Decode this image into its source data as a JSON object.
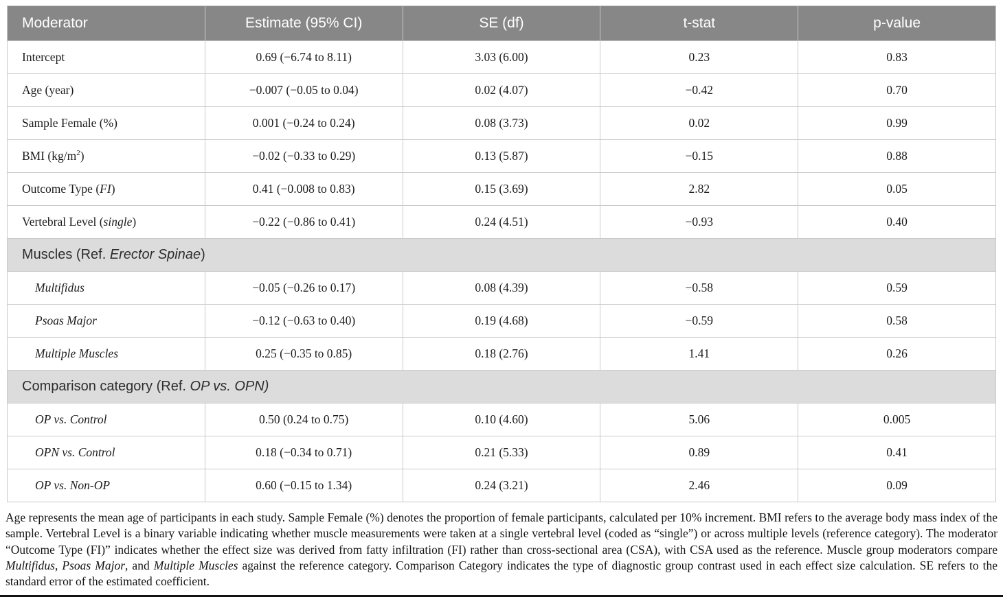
{
  "colors": {
    "header_bg": "#878787",
    "header_text": "#ffffff",
    "section_bg": "#dcdcdc",
    "border": "#c9c9c9",
    "body_text": "#1c1c1c",
    "bottom_rule": "#111111"
  },
  "table": {
    "columns": [
      {
        "label": "Moderator"
      },
      {
        "label": "Estimate (95% CI)"
      },
      {
        "label": "SE (df)"
      },
      {
        "label": "t-stat"
      },
      {
        "label": "p-value"
      }
    ],
    "rows": [
      {
        "kind": "data",
        "indent": false,
        "moderator": [
          {
            "t": "Intercept"
          }
        ],
        "estimate": "0.69 (−6.74 to 8.11)",
        "se_df": "3.03 (6.00)",
        "t_stat": "0.23",
        "p_value": "0.83"
      },
      {
        "kind": "data",
        "indent": false,
        "moderator": [
          {
            "t": "Age (year)"
          }
        ],
        "estimate": "−0.007 (−0.05 to 0.04)",
        "se_df": "0.02 (4.07)",
        "t_stat": "−0.42",
        "p_value": "0.70"
      },
      {
        "kind": "data",
        "indent": false,
        "moderator": [
          {
            "t": "Sample Female (%)"
          }
        ],
        "estimate": "0.001 (−0.24 to 0.24)",
        "se_df": "0.08 (3.73)",
        "t_stat": "0.02",
        "p_value": "0.99"
      },
      {
        "kind": "data",
        "indent": false,
        "moderator": [
          {
            "t": "BMI (kg/m"
          },
          {
            "t": "2",
            "sup": true
          },
          {
            "t": ")"
          }
        ],
        "estimate": "−0.02 (−0.33 to 0.29)",
        "se_df": "0.13 (5.87)",
        "t_stat": "−0.15",
        "p_value": "0.88"
      },
      {
        "kind": "data",
        "indent": false,
        "moderator": [
          {
            "t": "Outcome Type ("
          },
          {
            "t": "FI",
            "i": true
          },
          {
            "t": ")"
          }
        ],
        "estimate": "0.41 (−0.008 to 0.83)",
        "se_df": "0.15 (3.69)",
        "t_stat": "2.82",
        "p_value": "0.05"
      },
      {
        "kind": "data",
        "indent": false,
        "moderator": [
          {
            "t": "Vertebral Level ("
          },
          {
            "t": "single",
            "i": true
          },
          {
            "t": ")"
          }
        ],
        "estimate": "−0.22 (−0.86 to 0.41)",
        "se_df": "0.24 (4.51)",
        "t_stat": "−0.93",
        "p_value": "0.40"
      },
      {
        "kind": "section",
        "label": [
          {
            "t": "Muscles (Ref. "
          },
          {
            "t": "Erector Spinae",
            "i": true
          },
          {
            "t": ")"
          }
        ]
      },
      {
        "kind": "data",
        "indent": true,
        "moderator": [
          {
            "t": "Multifidus",
            "i": true
          }
        ],
        "estimate": "−0.05 (−0.26 to 0.17)",
        "se_df": "0.08 (4.39)",
        "t_stat": "−0.58",
        "p_value": "0.59"
      },
      {
        "kind": "data",
        "indent": true,
        "moderator": [
          {
            "t": "Psoas Major",
            "i": true
          }
        ],
        "estimate": "−0.12 (−0.63 to 0.40)",
        "se_df": "0.19 (4.68)",
        "t_stat": "−0.59",
        "p_value": "0.58"
      },
      {
        "kind": "data",
        "indent": true,
        "moderator": [
          {
            "t": "Multiple Muscles",
            "i": true
          }
        ],
        "estimate": "0.25 (−0.35 to 0.85)",
        "se_df": "0.18 (2.76)",
        "t_stat": "1.41",
        "p_value": "0.26"
      },
      {
        "kind": "section",
        "label": [
          {
            "t": "Comparison category (Ref. "
          },
          {
            "t": "OP vs. OPN)",
            "i": true
          }
        ]
      },
      {
        "kind": "data",
        "indent": true,
        "moderator": [
          {
            "t": "OP vs. Control",
            "i": true
          }
        ],
        "estimate": "0.50 (0.24 to 0.75)",
        "se_df": "0.10 (4.60)",
        "t_stat": "5.06",
        "p_value": "0.005"
      },
      {
        "kind": "data",
        "indent": true,
        "moderator": [
          {
            "t": "OPN vs. Control",
            "i": true
          }
        ],
        "estimate": "0.18 (−0.34 to 0.71)",
        "se_df": "0.21 (5.33)",
        "t_stat": "0.89",
        "p_value": "0.41"
      },
      {
        "kind": "data",
        "indent": true,
        "moderator": [
          {
            "t": "OP vs. Non-OP",
            "i": true
          }
        ],
        "estimate": "0.60 (−0.15 to 1.34)",
        "se_df": "0.24 (3.21)",
        "t_stat": "2.46",
        "p_value": "0.09"
      }
    ]
  },
  "footnote": {
    "segments": [
      {
        "t": "Age represents the mean age of participants in each study. Sample Female (%) denotes the proportion of female participants, calculated per 10% increment. BMI refers to the average body mass index of the sample. Vertebral Level is a binary variable indicating whether muscle measurements were taken at a single vertebral level (coded as “single”) or across multiple levels (reference category). The moderator “Outcome Type (FI)” indicates whether the effect size was derived from fatty infiltration (FI) rather than cross-sectional area (CSA), with CSA used as the reference. Muscle group moderators compare "
      },
      {
        "t": "Multifidus",
        "i": true
      },
      {
        "t": ", "
      },
      {
        "t": "Psoas Major",
        "i": true
      },
      {
        "t": ", and "
      },
      {
        "t": "Multiple Muscles",
        "i": true
      },
      {
        "t": " against the reference category. Comparison Category indicates the type of diagnostic group contrast used in each effect size calculation. SE refers to the standard error of the estimated coefficient."
      }
    ]
  }
}
